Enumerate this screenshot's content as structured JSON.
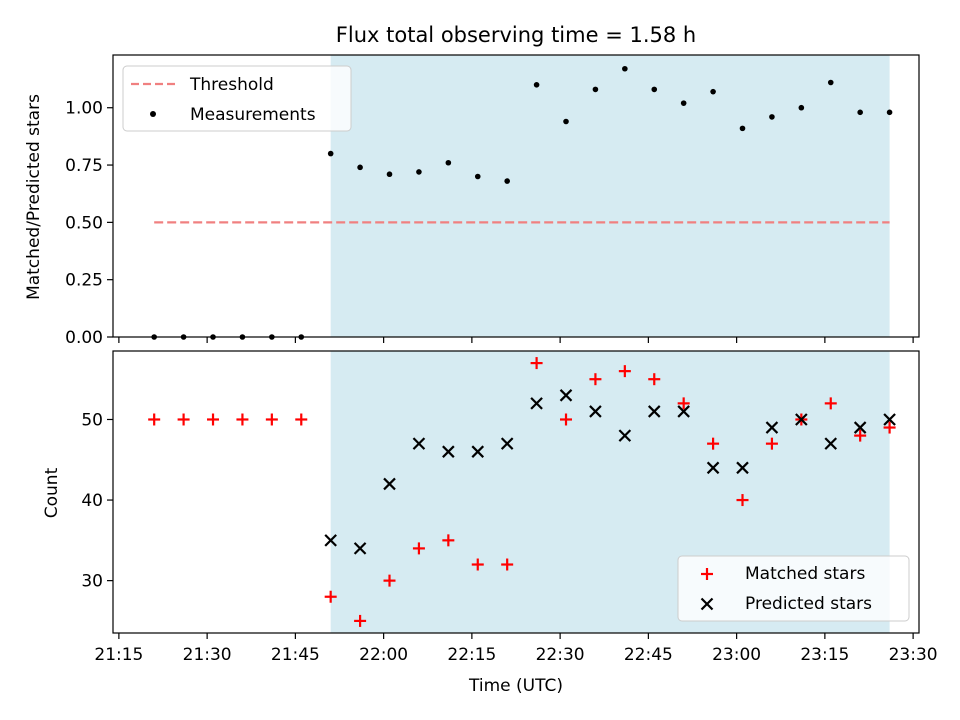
{
  "figure": {
    "title": "Flux total observing time = 1.58 h",
    "colors": {
      "span": "#add8e6",
      "threshold": "#f08080",
      "measurement": "#000000",
      "matched": "#ff0000",
      "predicted": "#000000"
    }
  },
  "chart_data": [
    {
      "type": "scatter",
      "ylabel": "Matched/Predicted stars",
      "xlabel": "",
      "ylim": [
        0,
        1.23
      ],
      "yticks": [
        "0.00",
        "0.25",
        "0.50",
        "0.75",
        "1.00"
      ],
      "grid": false,
      "legend_position": "upper-left",
      "shaded_span": {
        "start": "21:51",
        "end": "23:26"
      },
      "threshold": {
        "name": "Threshold",
        "value": 0.5,
        "x_start": "21:21",
        "x_end": "23:26",
        "style": "dashed"
      },
      "series": [
        {
          "name": "Measurements",
          "marker": "dot",
          "x": [
            "21:21",
            "21:26",
            "21:31",
            "21:36",
            "21:41",
            "21:46",
            "21:51",
            "21:56",
            "22:01",
            "22:06",
            "22:11",
            "22:16",
            "22:21",
            "22:26",
            "22:31",
            "22:36",
            "22:41",
            "22:46",
            "22:51",
            "22:56",
            "23:01",
            "23:06",
            "23:11",
            "23:16",
            "23:21",
            "23:26"
          ],
          "y": [
            0.0,
            0.0,
            0.0,
            0.0,
            0.0,
            0.0,
            0.8,
            0.74,
            0.71,
            0.72,
            0.76,
            0.7,
            0.68,
            1.1,
            0.94,
            1.08,
            1.17,
            1.08,
            1.02,
            1.07,
            0.91,
            0.96,
            1.0,
            1.11,
            0.98,
            0.98
          ]
        }
      ]
    },
    {
      "type": "scatter",
      "xlabel": "Time (UTC)",
      "ylabel": "Count",
      "ylim": [
        23.5,
        58.5
      ],
      "yticks": [
        "30",
        "40",
        "50"
      ],
      "xticks": [
        "21:15",
        "21:30",
        "21:45",
        "22:00",
        "22:15",
        "22:30",
        "22:45",
        "23:00",
        "23:15",
        "23:30"
      ],
      "xlim": [
        "21:14",
        "23:31"
      ],
      "grid": false,
      "legend_position": "lower-right",
      "shaded_span": {
        "start": "21:51",
        "end": "23:26"
      },
      "series": [
        {
          "name": "Matched stars",
          "marker": "plus",
          "x": [
            "21:21",
            "21:26",
            "21:31",
            "21:36",
            "21:41",
            "21:46",
            "21:51",
            "21:56",
            "22:01",
            "22:06",
            "22:11",
            "22:16",
            "22:21",
            "22:26",
            "22:31",
            "22:36",
            "22:41",
            "22:46",
            "22:51",
            "22:56",
            "23:01",
            "23:06",
            "23:11",
            "23:16",
            "23:21",
            "23:26"
          ],
          "y": [
            50,
            50,
            50,
            50,
            50,
            50,
            28,
            25,
            30,
            34,
            35,
            32,
            32,
            57,
            50,
            55,
            56,
            55,
            52,
            47,
            40,
            47,
            50,
            52,
            48,
            49
          ]
        },
        {
          "name": "Predicted stars",
          "marker": "x",
          "x": [
            "21:51",
            "21:56",
            "22:01",
            "22:06",
            "22:11",
            "22:16",
            "22:21",
            "22:26",
            "22:31",
            "22:36",
            "22:41",
            "22:46",
            "22:51",
            "22:56",
            "23:01",
            "23:06",
            "23:11",
            "23:16",
            "23:21",
            "23:26"
          ],
          "y": [
            35,
            34,
            42,
            47,
            46,
            46,
            47,
            52,
            53,
            51,
            48,
            51,
            51,
            44,
            44,
            49,
            50,
            47,
            49,
            50
          ]
        }
      ]
    }
  ]
}
